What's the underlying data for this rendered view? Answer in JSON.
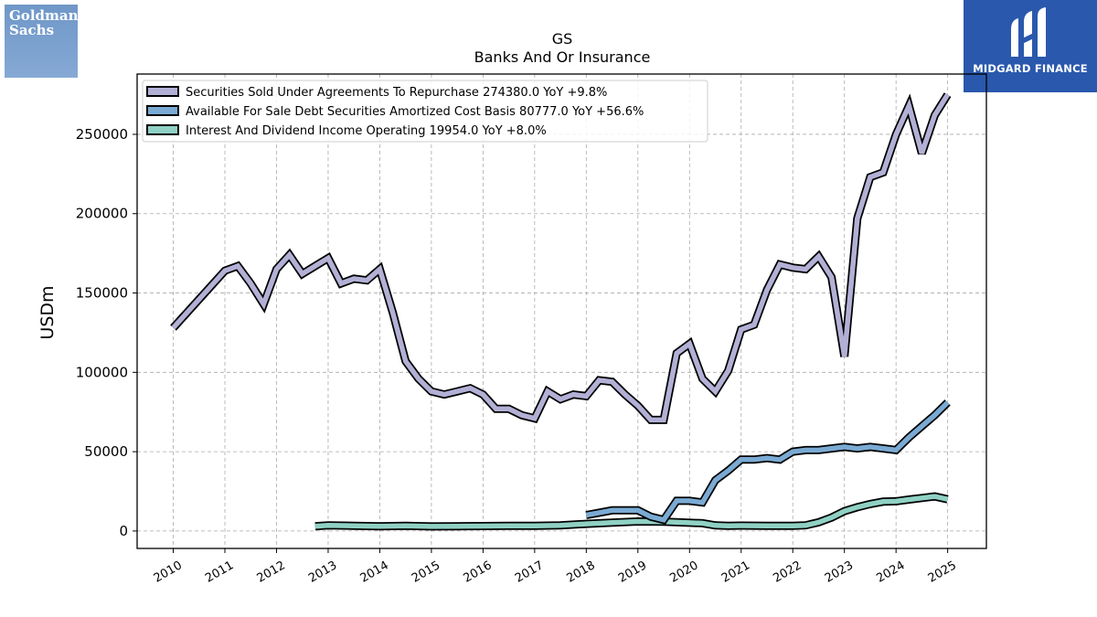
{
  "logos": {
    "left_lines": [
      "Goldman",
      "Sachs"
    ],
    "right_name": "MIDGARD FINANCE"
  },
  "chart_data": {
    "type": "line",
    "title": "GS",
    "subtitle": "Banks And Or Insurance",
    "ylabel": "USDm",
    "xlabel": "",
    "xlim": [
      2009.3,
      2025.75
    ],
    "ylim": [
      -11000,
      288000
    ],
    "grid": true,
    "legend_position": "top-left",
    "x_ticks": [
      2010,
      2011,
      2012,
      2013,
      2014,
      2015,
      2016,
      2017,
      2018,
      2019,
      2020,
      2021,
      2022,
      2023,
      2024,
      2025
    ],
    "x_tick_labels": [
      "2010",
      "2011",
      "2012",
      "2013",
      "2014",
      "2015",
      "2016",
      "2017",
      "2018",
      "2019",
      "2020",
      "2021",
      "2022",
      "2023",
      "2024",
      "2025"
    ],
    "y_ticks": [
      0,
      50000,
      100000,
      150000,
      200000,
      250000
    ],
    "y_tick_labels": [
      "0",
      "50000",
      "100000",
      "150000",
      "200000",
      "250000"
    ],
    "series": [
      {
        "name": "Securities Sold Under Agreements To Repurchase",
        "legend_label": "Securities Sold Under Agreements To Repurchase  274380.0 YoY +9.8%",
        "color": "#b3b0d6",
        "x": [
          2010.0,
          2011.0,
          2011.25,
          2011.5,
          2011.75,
          2012.0,
          2012.25,
          2012.5,
          2012.75,
          2013.0,
          2013.25,
          2013.5,
          2013.75,
          2014.0,
          2014.25,
          2014.5,
          2014.75,
          2015.0,
          2015.25,
          2015.5,
          2015.75,
          2016.0,
          2016.25,
          2016.5,
          2016.75,
          2017.0,
          2017.25,
          2017.5,
          2017.75,
          2018.0,
          2018.25,
          2018.5,
          2018.75,
          2019.0,
          2019.25,
          2019.5,
          2019.75,
          2020.0,
          2020.25,
          2020.5,
          2020.75,
          2021.0,
          2021.25,
          2021.5,
          2021.75,
          2022.0,
          2022.25,
          2022.5,
          2022.75,
          2023.0,
          2023.25,
          2023.5,
          2023.75,
          2024.0,
          2024.25,
          2024.5,
          2024.75,
          2025.0
        ],
        "y": [
          128000,
          164000,
          167000,
          156000,
          143000,
          165000,
          174000,
          162000,
          167000,
          172000,
          156000,
          159000,
          158000,
          165000,
          138000,
          107000,
          96000,
          88000,
          86000,
          88000,
          90000,
          86000,
          77000,
          77000,
          73000,
          71000,
          88000,
          83000,
          86000,
          85000,
          95000,
          94000,
          86000,
          79000,
          70000,
          70000,
          112000,
          118000,
          96000,
          88000,
          101000,
          127000,
          130000,
          152000,
          168000,
          166000,
          165000,
          173000,
          160000,
          110000,
          197000,
          223000,
          226000,
          250000,
          268000,
          238000,
          262000,
          275000
        ]
      },
      {
        "name": "Available For Sale Debt Securities Amortized Cost Basis",
        "legend_label": "Available For Sale Debt Securities Amortized Cost Basis  80777.0 YoY +56.6%",
        "color": "#7aaad3",
        "x": [
          2018.0,
          2018.25,
          2018.5,
          2018.75,
          2019.0,
          2019.25,
          2019.5,
          2019.75,
          2020.0,
          2020.25,
          2020.5,
          2020.75,
          2021.0,
          2021.25,
          2021.5,
          2021.75,
          2022.0,
          2022.25,
          2022.5,
          2022.75,
          2023.0,
          2023.25,
          2023.5,
          2023.75,
          2024.0,
          2024.25,
          2024.5,
          2024.75,
          2025.0
        ],
        "y": [
          10000,
          11500,
          13000,
          13000,
          13000,
          9000,
          7000,
          19000,
          19000,
          18000,
          32000,
          38000,
          45000,
          45000,
          46000,
          45000,
          50000,
          51000,
          51000,
          52000,
          53000,
          52000,
          53000,
          52000,
          51000,
          59000,
          66000,
          73000,
          81000
        ]
      },
      {
        "name": "Interest And Dividend Income Operating",
        "legend_label": "Interest And Dividend Income Operating  19954.0 YoY +8.0%",
        "color": "#8fd1c4",
        "x": [
          2012.75,
          2013.0,
          2013.5,
          2014.0,
          2014.5,
          2015.0,
          2015.5,
          2016.0,
          2016.5,
          2017.0,
          2017.5,
          2018.0,
          2018.5,
          2019.0,
          2019.5,
          2020.0,
          2020.25,
          2020.5,
          2020.75,
          2021.0,
          2021.5,
          2022.0,
          2022.25,
          2022.5,
          2022.75,
          2023.0,
          2023.25,
          2023.5,
          2023.75,
          2024.0,
          2024.25,
          2024.5,
          2024.75,
          2025.0
        ],
        "y": [
          3000,
          3500,
          3300,
          3000,
          3300,
          2900,
          3000,
          3100,
          3300,
          3300,
          3600,
          4500,
          5300,
          6000,
          5900,
          5200,
          4900,
          3500,
          3300,
          3400,
          3300,
          3300,
          3600,
          5500,
          8500,
          12500,
          15000,
          17000,
          18500,
          18700,
          19800,
          20800,
          21800,
          20000
        ]
      }
    ]
  }
}
